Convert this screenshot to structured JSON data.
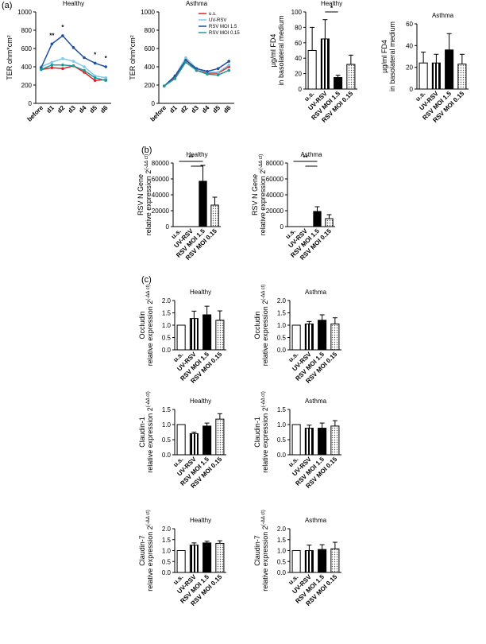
{
  "panel_labels": [
    "(a)",
    "(b)",
    "(c)"
  ],
  "chart_data": [
    {
      "type": "line",
      "title": "Healthy",
      "ylabel": "TER ohm*cm²",
      "categories": [
        "before",
        "d1",
        "d2",
        "d3",
        "d4",
        "d5",
        "d6"
      ],
      "ylim": [
        0,
        1000
      ],
      "yticks": [
        0,
        200,
        400,
        600,
        800,
        1000
      ],
      "marks": [
        null,
        "**",
        "*",
        null,
        null,
        "*",
        "*"
      ],
      "series": [
        {
          "name": "u.s.",
          "color": "#e02020",
          "values": [
            370,
            390,
            380,
            410,
            340,
            250,
            260
          ]
        },
        {
          "name": "UV-RSV",
          "color": "#7fc8e8",
          "values": [
            400,
            450,
            490,
            460,
            400,
            300,
            280
          ]
        },
        {
          "name": "RSV MOI 1.5",
          "color": "#1f4fa0",
          "values": [
            390,
            650,
            740,
            610,
            500,
            440,
            400
          ]
        },
        {
          "name": "RSV MOI 0.15",
          "color": "#1f9a9a",
          "values": [
            370,
            420,
            420,
            410,
            360,
            280,
            250
          ]
        }
      ]
    },
    {
      "type": "line",
      "title": "Asthma",
      "ylabel": "TER ohm*cm²",
      "legend": "top-right",
      "categories": [
        "before",
        "d1",
        "d2",
        "d3",
        "d4",
        "d5",
        "d6"
      ],
      "ylim": [
        0,
        1000
      ],
      "yticks": [
        0,
        200,
        400,
        600,
        800,
        1000
      ],
      "series": [
        {
          "name": "u.s.",
          "color": "#e02020",
          "values": [
            190,
            280,
            480,
            360,
            330,
            330,
            400
          ]
        },
        {
          "name": "UV-RSV",
          "color": "#7fc8e8",
          "values": [
            190,
            300,
            500,
            380,
            340,
            340,
            420
          ]
        },
        {
          "name": "RSV MOI 1.5",
          "color": "#1f4fa0",
          "values": [
            190,
            300,
            470,
            380,
            350,
            380,
            460
          ]
        },
        {
          "name": "RSV MOI 0.15",
          "color": "#1f9a9a",
          "values": [
            190,
            270,
            450,
            360,
            320,
            310,
            360
          ]
        }
      ]
    },
    {
      "type": "bar",
      "title": "Healthy",
      "ylabel": [
        "µg/ml FD4",
        "in basolateral medium"
      ],
      "categories": [
        "u.s.",
        "UV-RSV",
        "RSV MOI 1.5",
        "RSV MOI 0.15"
      ],
      "values": [
        50,
        65,
        15,
        32
      ],
      "errors": [
        30,
        25,
        3,
        12
      ],
      "styles": [
        "open",
        "striped",
        "solid",
        "dotted"
      ],
      "ylim": [
        0,
        100
      ],
      "yticks": [
        0,
        20,
        40,
        60,
        80,
        100
      ],
      "significance": "*"
    },
    {
      "type": "bar",
      "title": "Asthma",
      "ylabel": [
        "µg/ml FD4",
        "in basolateral medium"
      ],
      "categories": [
        "u.s.",
        "UV-RSV",
        "RSV MOI 1.5",
        "RSV MOI 0.15"
      ],
      "values": [
        24,
        24,
        36,
        23
      ],
      "errors": [
        10,
        8,
        15,
        9
      ],
      "styles": [
        "open",
        "striped",
        "solid",
        "dotted"
      ],
      "ylim": [
        0,
        60
      ],
      "yticks": [
        0,
        20,
        40,
        60
      ]
    },
    {
      "type": "bar",
      "title": "Healthy",
      "ylabel": [
        "RSV N Gene",
        "relative expression 2"
      ],
      "ylabel_superscript": "(-ΔΔ ct)",
      "categories": [
        "u.s.",
        "UV-RSV",
        "RSV MOI 1.5",
        "RSV MOI 0.15"
      ],
      "values": [
        0,
        0,
        57000,
        27000
      ],
      "errors": [
        0,
        0,
        20000,
        10000
      ],
      "styles": [
        "open",
        "striped",
        "solid",
        "dotted"
      ],
      "ylim": [
        0,
        80000
      ],
      "yticks": [
        0,
        20000,
        40000,
        60000,
        80000
      ],
      "significance": "**"
    },
    {
      "type": "bar",
      "title": "Asthma",
      "ylabel": [
        "RSV N Gene",
        "relative expression 2"
      ],
      "ylabel_superscript": "(-ΔΔ ct)",
      "categories": [
        "u.s.",
        "UV-RSV",
        "RSV MOI 1.5",
        "RSV MOI 0.15"
      ],
      "values": [
        0,
        0,
        19000,
        10000
      ],
      "errors": [
        0,
        0,
        6000,
        5000
      ],
      "styles": [
        "open",
        "striped",
        "solid",
        "dotted"
      ],
      "ylim": [
        0,
        80000
      ],
      "yticks": [
        0,
        20000,
        40000,
        60000,
        80000
      ],
      "significance": "**"
    },
    {
      "type": "bar",
      "title": "Healthy",
      "ylabel": [
        "Occludin",
        "relative expression 2"
      ],
      "ylabel_superscript": "(-ΔΔ ct)",
      "categories": [
        "u.s.",
        "UV-RSV",
        "RSV MOI 1.5",
        "RSV MOI 0.15"
      ],
      "values": [
        1.0,
        1.27,
        1.42,
        1.2
      ],
      "errors": [
        0,
        0.3,
        0.35,
        0.38
      ],
      "styles": [
        "open",
        "striped",
        "solid",
        "dotted"
      ],
      "ylim": [
        0,
        2
      ],
      "yticks": [
        {
          "value": 0,
          "label": "0.0"
        },
        {
          "value": 0.5,
          "label": "0.5"
        },
        {
          "value": 1,
          "label": "1.0"
        },
        {
          "value": 1.5,
          "label": "1.5"
        },
        {
          "value": 2,
          "label": "2.0"
        }
      ]
    },
    {
      "type": "bar",
      "title": "Asthma",
      "ylabel": [
        "Occludin",
        "relative expression 2"
      ],
      "ylabel_superscript": "(-ΔΔ ct)",
      "categories": [
        "u.s.",
        "UV-RSV",
        "RSV MOI 1.5",
        "RSV MOI 0.15"
      ],
      "values": [
        1.0,
        1.05,
        1.2,
        1.05
      ],
      "errors": [
        0,
        0.1,
        0.22,
        0.25
      ],
      "styles": [
        "open",
        "striped",
        "solid",
        "dotted"
      ],
      "ylim": [
        0,
        2
      ],
      "yticks": [
        {
          "value": 0,
          "label": "0.0"
        },
        {
          "value": 0.5,
          "label": "0.5"
        },
        {
          "value": 1,
          "label": "1.0"
        },
        {
          "value": 1.5,
          "label": "1.5"
        },
        {
          "value": 2,
          "label": "2.0"
        }
      ]
    },
    {
      "type": "bar",
      "title": "Healthy",
      "ylabel": [
        "Claudin-1",
        "relative expression 2"
      ],
      "ylabel_superscript": "(-ΔΔ ct)",
      "categories": [
        "u.s.",
        "UV-RSV",
        "RSV MOI 1.5",
        "RSV MOI 0.15"
      ],
      "values": [
        1.0,
        0.7,
        0.95,
        1.18
      ],
      "errors": [
        0,
        0.05,
        0.1,
        0.18
      ],
      "styles": [
        "open",
        "striped",
        "solid",
        "dotted"
      ],
      "ylim": [
        0,
        1.5
      ],
      "yticks": [
        {
          "value": 0,
          "label": "0.0"
        },
        {
          "value": 0.5,
          "label": "0.5"
        },
        {
          "value": 1,
          "label": "1.0"
        },
        {
          "value": 1.5,
          "label": "1.5"
        }
      ]
    },
    {
      "type": "bar",
      "title": "Asthma",
      "ylabel": [
        "Claudin-1",
        "relative expression 2"
      ],
      "ylabel_superscript": "(-ΔΔ ct)",
      "categories": [
        "u.s.",
        "UV-RSV",
        "RSV MOI 1.5",
        "RSV MOI 0.15"
      ],
      "values": [
        1.0,
        0.88,
        0.88,
        0.95
      ],
      "errors": [
        0,
        0.1,
        0.17,
        0.18
      ],
      "styles": [
        "open",
        "striped",
        "solid",
        "dotted"
      ],
      "ylim": [
        0,
        1.5
      ],
      "yticks": [
        {
          "value": 0,
          "label": "0.0"
        },
        {
          "value": 0.5,
          "label": "0.5"
        },
        {
          "value": 1,
          "label": "1.0"
        },
        {
          "value": 1.5,
          "label": "1.5"
        }
      ]
    },
    {
      "type": "bar",
      "title": "Healthy",
      "ylabel": [
        "Claudin-7",
        "relative expression 2"
      ],
      "ylabel_superscript": "(-ΔΔ ct)",
      "categories": [
        "u.s.",
        "UV-RSV",
        "RSV MOI 1.5",
        "RSV MOI 0.15"
      ],
      "values": [
        1.0,
        1.25,
        1.35,
        1.33
      ],
      "errors": [
        0,
        0.1,
        0.08,
        0.12
      ],
      "styles": [
        "open",
        "striped",
        "solid",
        "dotted"
      ],
      "ylim": [
        0,
        2
      ],
      "yticks": [
        {
          "value": 0,
          "label": "0.0"
        },
        {
          "value": 0.5,
          "label": "0.5"
        },
        {
          "value": 1,
          "label": "1.0"
        },
        {
          "value": 1.5,
          "label": "1.5"
        },
        {
          "value": 2,
          "label": "2.0"
        }
      ]
    },
    {
      "type": "bar",
      "title": "Asthma",
      "ylabel": [
        "Claudin-7",
        "relative expression 2"
      ],
      "ylabel_superscript": "(-ΔΔ ct)",
      "categories": [
        "u.s.",
        "UV-RSV",
        "RSV MOI 1.5",
        "RSV MOI 0.15"
      ],
      "values": [
        1.0,
        1.0,
        1.05,
        1.08
      ],
      "errors": [
        0,
        0.25,
        0.22,
        0.3
      ],
      "styles": [
        "open",
        "striped",
        "solid",
        "dotted"
      ],
      "ylim": [
        0,
        2
      ],
      "yticks": [
        {
          "value": 0,
          "label": "0.0"
        },
        {
          "value": 0.5,
          "label": "0.5"
        },
        {
          "value": 1,
          "label": "1.0"
        },
        {
          "value": 1.5,
          "label": "1.5"
        },
        {
          "value": 2,
          "label": "2.0"
        }
      ]
    }
  ]
}
